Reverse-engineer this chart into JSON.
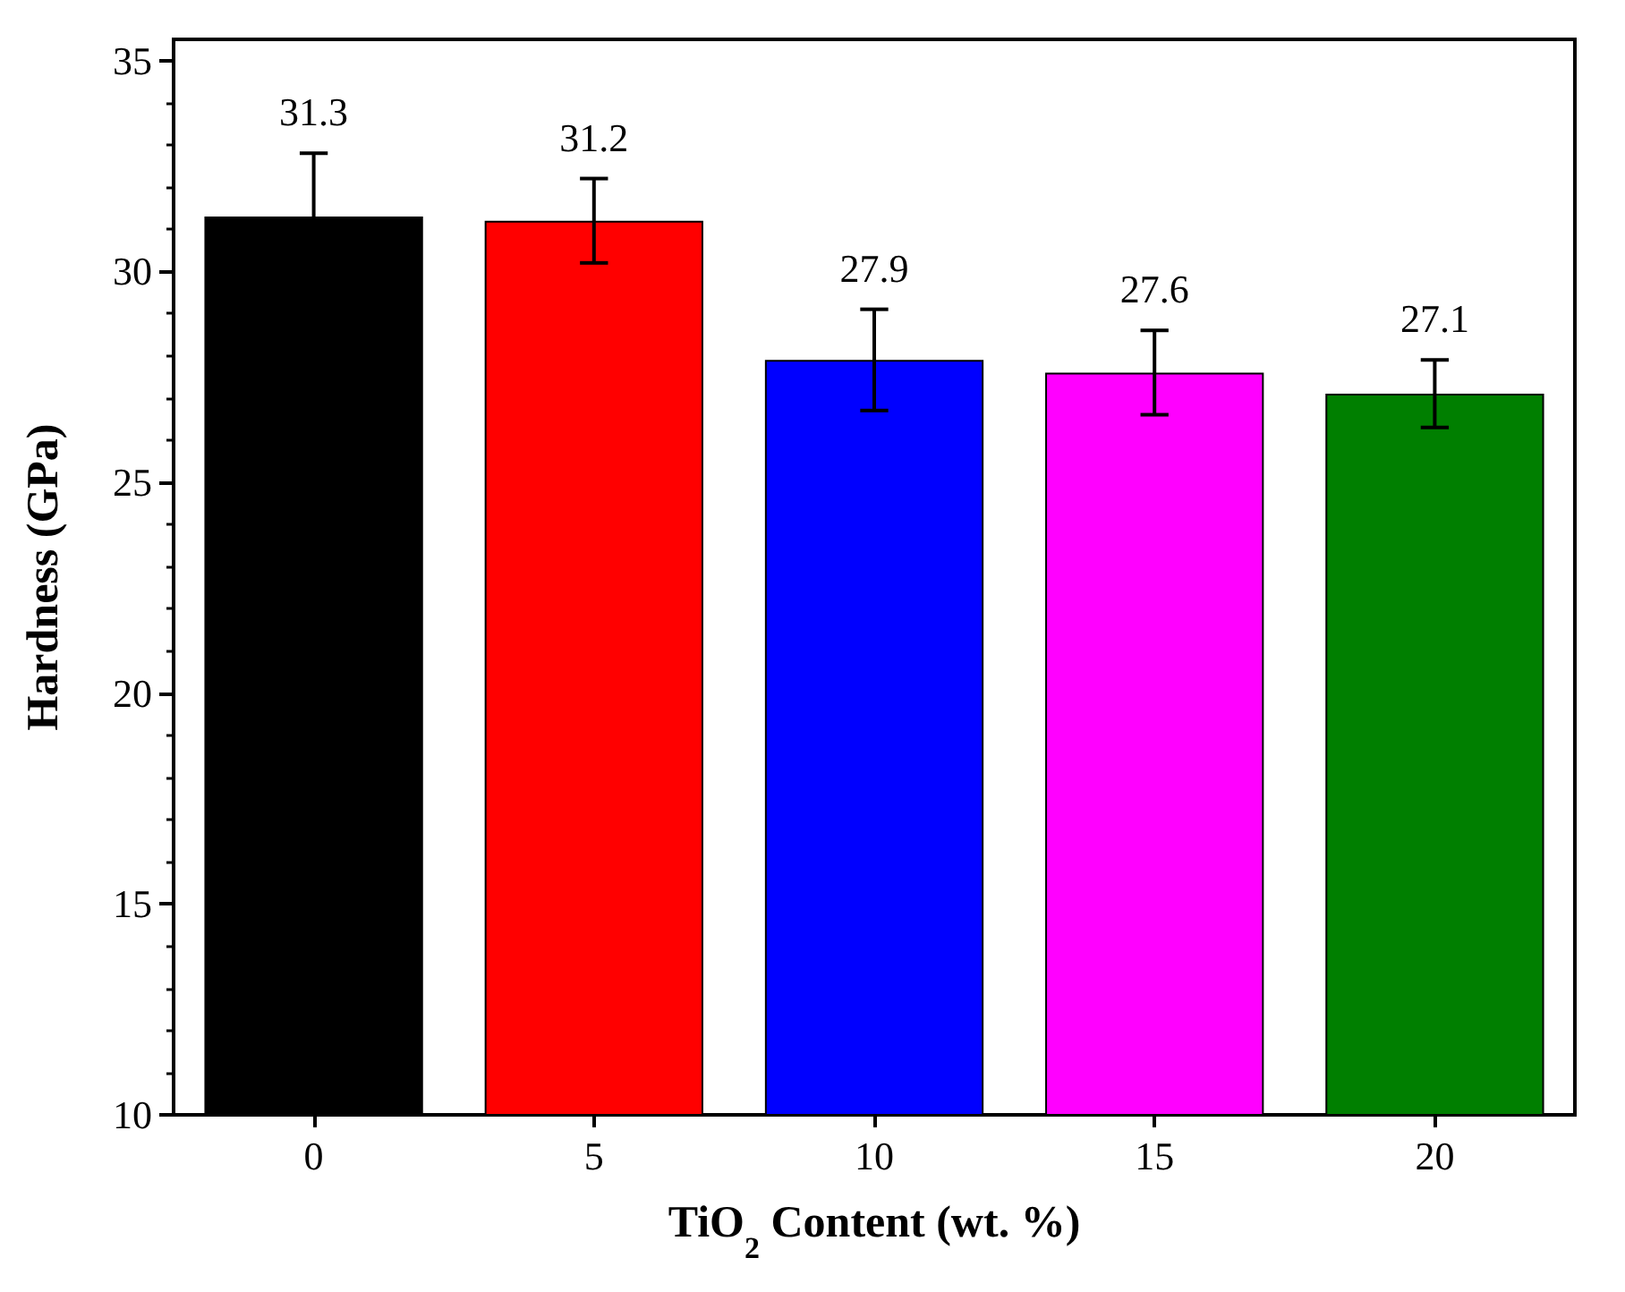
{
  "chart_data": {
    "type": "bar",
    "xlabel": "TiO$_{2}$ Content (wt. %)",
    "ylabel": "Hardness (GPa)",
    "categories": [
      "0",
      "5",
      "10",
      "15",
      "20"
    ],
    "values": [
      31.3,
      31.2,
      27.9,
      27.6,
      27.1
    ],
    "colors": [
      "#000000",
      "#ff0000",
      "#0000ff",
      "#ff00ff",
      "#007f00"
    ],
    "errors": [
      1.5,
      1.0,
      1.2,
      1.0,
      0.8
    ],
    "data_labels": true,
    "ylim": [
      10,
      35.5
    ],
    "yticks": [
      10,
      {
        "value": 11,
        "label": null
      },
      {
        "value": 12,
        "label": null
      },
      {
        "value": 13,
        "label": null
      },
      {
        "value": 14,
        "label": null
      },
      15,
      {
        "value": 16,
        "label": null
      },
      {
        "value": 17,
        "label": null
      },
      {
        "value": 18,
        "label": null
      },
      {
        "value": 19,
        "label": null
      },
      20,
      {
        "value": 21,
        "label": null
      },
      {
        "value": 22,
        "label": null
      },
      {
        "value": 23,
        "label": null
      },
      {
        "value": 24,
        "label": null
      },
      25,
      {
        "value": 26,
        "label": null
      },
      {
        "value": 27,
        "label": null
      },
      {
        "value": 28,
        "label": null
      },
      {
        "value": 29,
        "label": null
      },
      30,
      {
        "value": 31,
        "label": null
      },
      {
        "value": 32,
        "label": null
      },
      {
        "value": 33,
        "label": null
      },
      {
        "value": 34,
        "label": null
      },
      35
    ],
    "grid": false
  }
}
